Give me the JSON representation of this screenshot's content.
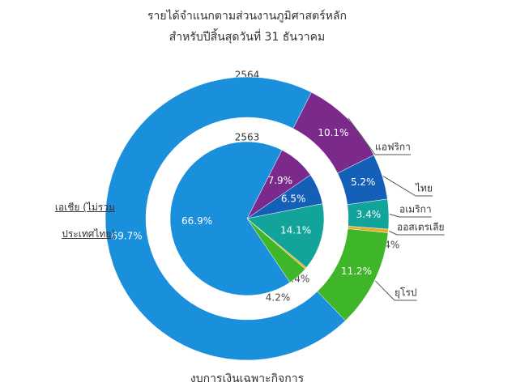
{
  "chart_data": {
    "type": "donut",
    "title": "รายได้จำแนกตามส่วนงานภูมิศาสตร์หลัก",
    "subtitle": "สำหรับปีสิ้นสุดวันที่ 31 ธันวาคม",
    "caption": "งบการเงินเฉพาะกิจการ",
    "categories": [
      "แอฟริกา",
      "ไทย",
      "อเมริกา",
      "ออสเตรเลีย",
      "ยุโรป",
      "เอเชีย (ไม่รวมประเทศไทย)"
    ],
    "colors": [
      "#7b2a8c",
      "#1460b8",
      "#12a39a",
      "#f0a820",
      "#3fb52a",
      "#1a8fdc"
    ],
    "series": [
      {
        "name": "2564",
        "values": [
          10.1,
          5.2,
          3.4,
          0.4,
          11.2,
          69.7
        ],
        "value_labels": [
          "10.1%",
          "5.2%",
          "3.4%",
          "0.4%",
          "11.2%",
          "69.7%"
        ]
      },
      {
        "name": "2563",
        "values": [
          7.9,
          6.5,
          14.1,
          0.4,
          4.2,
          66.9
        ],
        "value_labels": [
          "7.9%",
          "6.5%",
          "14.1%",
          "0.4%",
          "4.2%",
          "66.9%"
        ]
      }
    ]
  }
}
